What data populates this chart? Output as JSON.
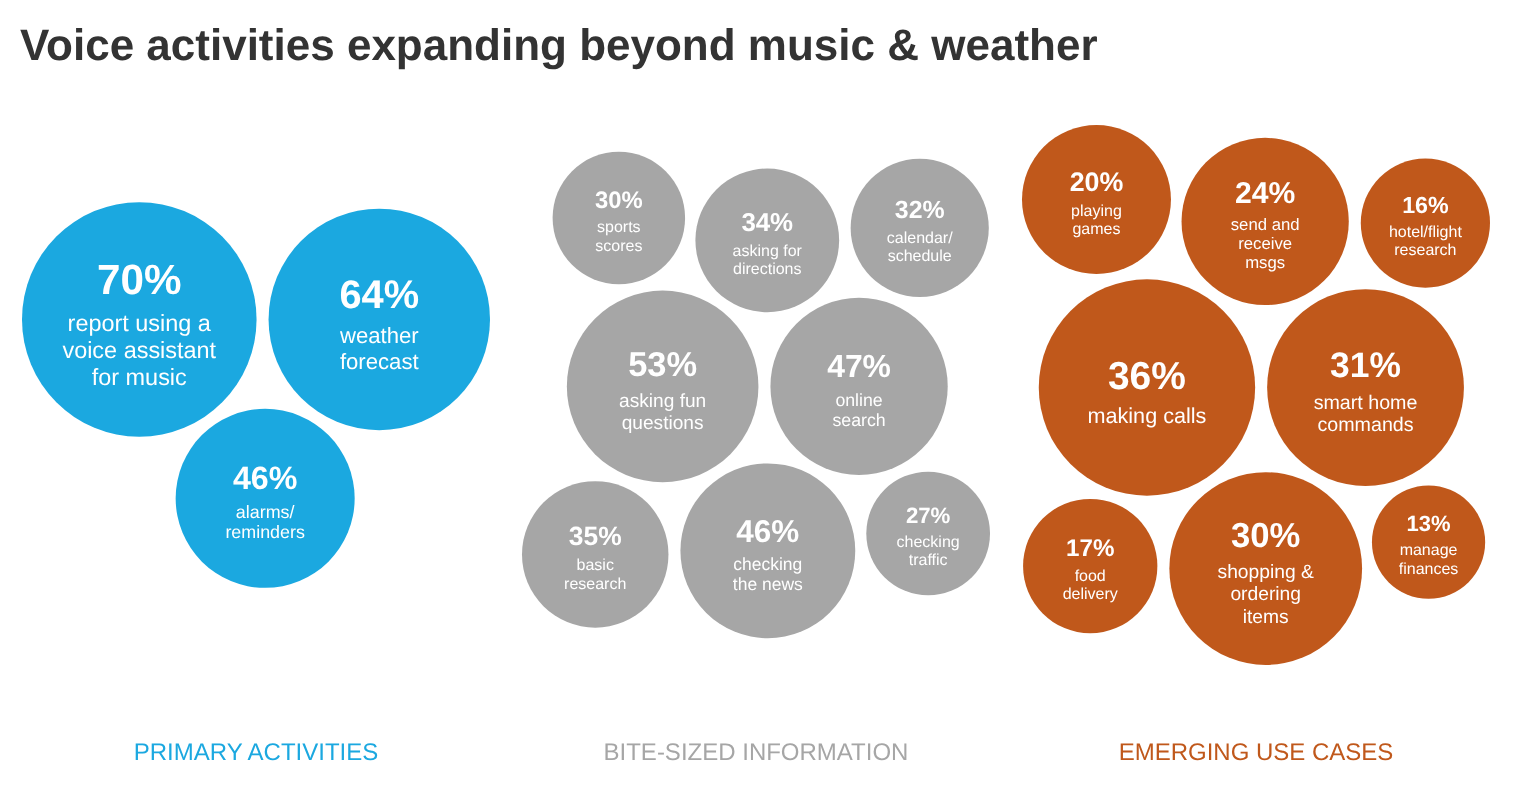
{
  "chart_data": {
    "type": "other",
    "title": "Voice activities expanding beyond music & weather",
    "categories": [
      "report using a\nvoice assistant\nfor music",
      "weather\nforecast",
      "alarms/\nreminders",
      "asking fun\nquestions",
      "online\nsearch",
      "checking\nthe news",
      "asking for\ndirections",
      "sports\nscores",
      "basic\nresearch",
      "calendar/\nschedule",
      "checking\ntraffic",
      "making calls",
      "smart home\ncommands",
      "shopping &\nordering\nitems",
      "send and\nreceive\nmsgs",
      "playing\ngames",
      "food\ndelivery",
      "hotel/flight\nresearch",
      "manage\nfinances"
    ],
    "series": [
      {
        "name": "PRIMARY ACTIVITIES",
        "color": "#1ba8e0",
        "values": [
          70,
          64,
          46,
          null,
          null,
          null,
          null,
          null,
          null,
          null,
          null,
          null,
          null,
          null,
          null,
          null,
          null,
          null,
          null
        ],
        "value_labels": [
          "70%",
          "64%",
          "46%",
          null,
          null,
          null,
          null,
          null,
          null,
          null,
          null,
          null,
          null,
          null,
          null,
          null,
          null,
          null,
          null
        ]
      },
      {
        "name": "BITE-SIZED INFORMATION",
        "color": "#a6a6a6",
        "values": [
          null,
          null,
          null,
          53,
          47,
          46,
          34,
          30,
          35,
          32,
          27,
          null,
          null,
          null,
          null,
          null,
          null,
          null,
          null
        ],
        "value_labels": [
          null,
          null,
          null,
          "53%",
          "47%",
          "46%",
          "34%",
          "30%",
          "35%",
          "32%",
          "27%",
          null,
          null,
          null,
          null,
          null,
          null,
          null,
          null
        ]
      },
      {
        "name": "EMERGING USE CASES",
        "color": "#c0581b",
        "values": [
          null,
          null,
          null,
          null,
          null,
          null,
          null,
          null,
          null,
          null,
          null,
          36,
          31,
          30,
          24,
          20,
          17,
          16,
          13
        ],
        "value_labels": [
          null,
          null,
          null,
          null,
          null,
          null,
          null,
          null,
          null,
          null,
          null,
          "36%",
          "31%",
          "30%",
          "24%",
          "20%",
          "17%",
          "16%",
          "13%"
        ]
      }
    ]
  }
}
